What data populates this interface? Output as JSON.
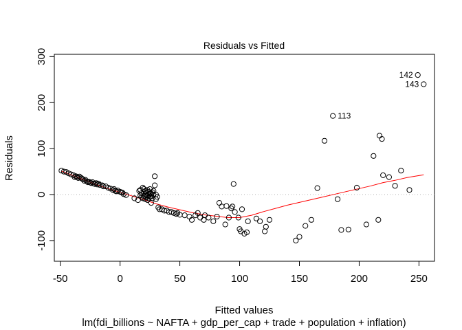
{
  "chart_data": {
    "type": "scatter",
    "title": "Residuals vs Fitted",
    "xlabel": "Fitted values",
    "ylabel": "Residuals",
    "subtitle": "lm(fdi_billions ~ NAFTA + gdp_per_cap + trade + population + inflation)",
    "xlim": [
      -55,
      263
    ],
    "ylim": [
      -145,
      305
    ],
    "x_ticks": [
      -50,
      0,
      50,
      100,
      150,
      200,
      250
    ],
    "y_ticks": [
      -100,
      0,
      100,
      200,
      300
    ],
    "y_tick_labels": [
      "-100",
      "0",
      "100",
      "200",
      "300"
    ],
    "x_tick_labels": [
      "-50",
      "0",
      "50",
      "100",
      "150",
      "200",
      "250"
    ],
    "reference_line_y": 0,
    "points": [
      [
        -49,
        52
      ],
      [
        -47,
        50
      ],
      [
        -45,
        49
      ],
      [
        -43,
        46
      ],
      [
        -41,
        44
      ],
      [
        -39,
        42
      ],
      [
        -38,
        38
      ],
      [
        -37,
        40
      ],
      [
        -36,
        38
      ],
      [
        -35,
        36
      ],
      [
        -34,
        39
      ],
      [
        -33,
        37
      ],
      [
        -32,
        35
      ],
      [
        -31,
        33
      ],
      [
        -30,
        30
      ],
      [
        -29,
        32
      ],
      [
        -28,
        29
      ],
      [
        -27,
        27
      ],
      [
        -26,
        28
      ],
      [
        -25,
        26
      ],
      [
        -24,
        25
      ],
      [
        -23,
        27
      ],
      [
        -22,
        24
      ],
      [
        -21,
        23
      ],
      [
        -20,
        25
      ],
      [
        -19,
        22
      ],
      [
        -18,
        24
      ],
      [
        -17,
        21
      ],
      [
        -15,
        20
      ],
      [
        -14,
        18
      ],
      [
        -12,
        18
      ],
      [
        -10,
        15
      ],
      [
        -8,
        13
      ],
      [
        -6,
        10
      ],
      [
        -5,
        12
      ],
      [
        -4,
        8
      ],
      [
        -3,
        7
      ],
      [
        -2,
        9
      ],
      [
        0,
        6
      ],
      [
        1,
        5
      ],
      [
        2,
        4
      ],
      [
        3,
        1
      ],
      [
        5,
        -1
      ],
      [
        12,
        -8
      ],
      [
        15,
        -12
      ],
      [
        16,
        8
      ],
      [
        17,
        10
      ],
      [
        17,
        -2
      ],
      [
        18,
        3
      ],
      [
        18,
        -5
      ],
      [
        19,
        15
      ],
      [
        19,
        -8
      ],
      [
        20,
        12
      ],
      [
        20,
        5
      ],
      [
        20,
        -3
      ],
      [
        21,
        0
      ],
      [
        21,
        8
      ],
      [
        21,
        -10
      ],
      [
        22,
        4
      ],
      [
        22,
        -6
      ],
      [
        23,
        10
      ],
      [
        23,
        -2
      ],
      [
        23,
        -12
      ],
      [
        24,
        6
      ],
      [
        24,
        0
      ],
      [
        24,
        -8
      ],
      [
        25,
        3
      ],
      [
        25,
        -5
      ],
      [
        25,
        12
      ],
      [
        26,
        -18
      ],
      [
        26,
        -4
      ],
      [
        26,
        2
      ],
      [
        27,
        5
      ],
      [
        27,
        -8
      ],
      [
        28,
        0
      ],
      [
        28,
        8
      ],
      [
        29,
        20
      ],
      [
        29,
        40
      ],
      [
        30,
        -10
      ],
      [
        30,
        0
      ],
      [
        31,
        -5
      ],
      [
        32,
        -28
      ],
      [
        33,
        -32
      ],
      [
        35,
        -32
      ],
      [
        37,
        -35
      ],
      [
        39,
        -35
      ],
      [
        41,
        -38
      ],
      [
        43,
        -38
      ],
      [
        45,
        -40
      ],
      [
        47,
        -42
      ],
      [
        48,
        -40
      ],
      [
        50,
        -44
      ],
      [
        54,
        -45
      ],
      [
        58,
        -48
      ],
      [
        60,
        -55
      ],
      [
        63,
        -45
      ],
      [
        65,
        -40
      ],
      [
        67,
        -50
      ],
      [
        70,
        -55
      ],
      [
        71,
        -45
      ],
      [
        74,
        -50
      ],
      [
        78,
        -58
      ],
      [
        81,
        -48
      ],
      [
        83,
        -18
      ],
      [
        85,
        -26
      ],
      [
        88,
        -65
      ],
      [
        89,
        -25
      ],
      [
        91,
        -50
      ],
      [
        93,
        -30
      ],
      [
        94,
        -26
      ],
      [
        95,
        23
      ],
      [
        96,
        -38
      ],
      [
        99,
        -50
      ],
      [
        100,
        -75
      ],
      [
        101,
        -80
      ],
      [
        102,
        -32
      ],
      [
        104,
        -85
      ],
      [
        106,
        -82
      ],
      [
        107,
        -58
      ],
      [
        114,
        -52
      ],
      [
        117,
        -58
      ],
      [
        121,
        -80
      ],
      [
        122,
        -70
      ],
      [
        125,
        -55
      ],
      [
        147,
        -100
      ],
      [
        150,
        -92
      ],
      [
        155,
        -68
      ],
      [
        160,
        -55
      ],
      [
        165,
        14
      ],
      [
        171,
        117
      ],
      [
        178,
        171
      ],
      [
        182,
        -10
      ],
      [
        185,
        -77
      ],
      [
        191,
        -76
      ],
      [
        198,
        15
      ],
      [
        206,
        -65
      ],
      [
        212,
        84
      ],
      [
        216,
        -55
      ],
      [
        217,
        128
      ],
      [
        219,
        121
      ],
      [
        220,
        42
      ],
      [
        225,
        38
      ],
      [
        230,
        19
      ],
      [
        235,
        52
      ],
      [
        242,
        10
      ],
      [
        249,
        260
      ],
      [
        254,
        240
      ]
    ],
    "labeled_points": [
      {
        "label": "113",
        "x": 178,
        "y": 171,
        "side": "right"
      },
      {
        "label": "142",
        "x": 249,
        "y": 260,
        "side": "left"
      },
      {
        "label": "143",
        "x": 254,
        "y": 240,
        "side": "left"
      }
    ],
    "smooth_line": [
      [
        -49,
        51
      ],
      [
        -40,
        42
      ],
      [
        -30,
        32
      ],
      [
        -20,
        22
      ],
      [
        -10,
        13
      ],
      [
        0,
        5
      ],
      [
        10,
        -3
      ],
      [
        20,
        -11
      ],
      [
        30,
        -20
      ],
      [
        40,
        -27
      ],
      [
        50,
        -33
      ],
      [
        60,
        -39
      ],
      [
        70,
        -44
      ],
      [
        80,
        -47
      ],
      [
        90,
        -50
      ],
      [
        100,
        -50
      ],
      [
        110,
        -45
      ],
      [
        120,
        -37
      ],
      [
        130,
        -30
      ],
      [
        140,
        -23
      ],
      [
        150,
        -17
      ],
      [
        160,
        -11
      ],
      [
        170,
        -5
      ],
      [
        180,
        1
      ],
      [
        190,
        7
      ],
      [
        200,
        13
      ],
      [
        210,
        19
      ],
      [
        220,
        26
      ],
      [
        230,
        31
      ],
      [
        240,
        37
      ],
      [
        254,
        43
      ]
    ],
    "colors": {
      "points": "#000000",
      "smooth_line": "#ff0000",
      "reference_line": "#b3b3b3"
    },
    "grid": false,
    "legend": "none"
  }
}
